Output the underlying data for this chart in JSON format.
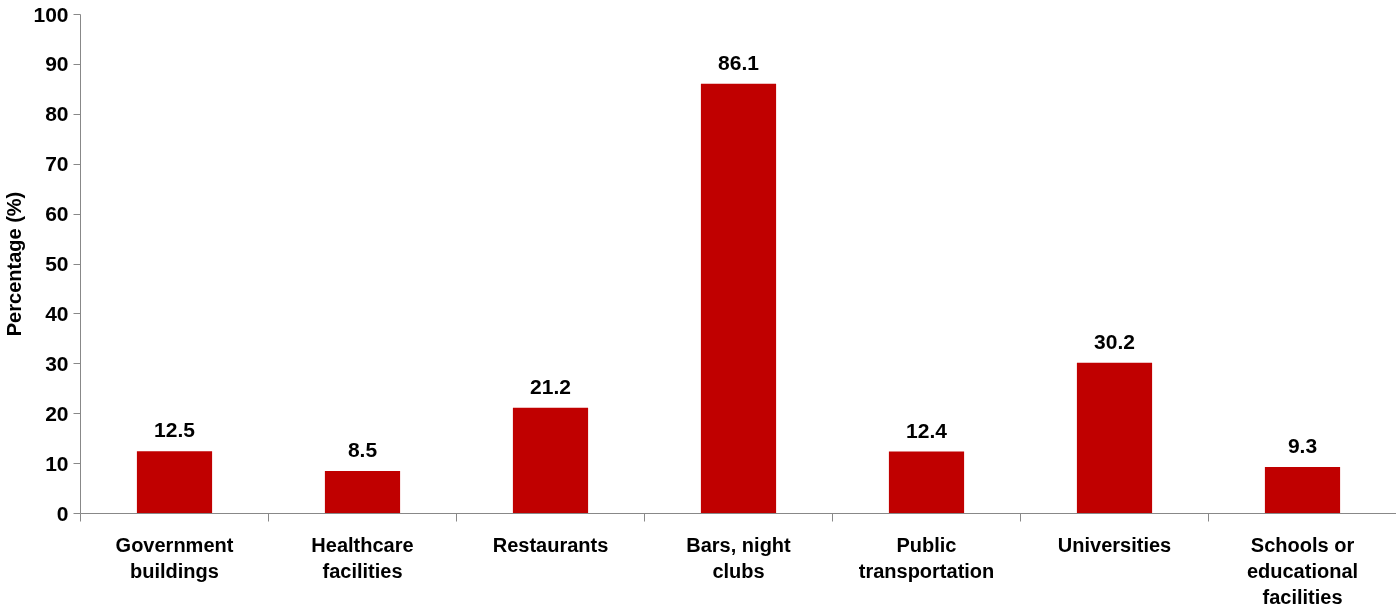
{
  "chart_data": {
    "type": "bar",
    "ylabel": "Percentage (%)",
    "categories": [
      "Government buildings",
      "Healthcare facilities",
      "Restaurants",
      "Bars, night clubs",
      "Public transportation",
      "Universities",
      "Schools or educational facilities"
    ],
    "values": [
      12.5,
      8.5,
      21.2,
      86.1,
      12.4,
      30.2,
      9.3
    ],
    "color": "#c00000",
    "ylim": [
      0,
      100
    ],
    "yticks": [
      0,
      10,
      20,
      30,
      40,
      50,
      60,
      70,
      80,
      90,
      100
    ],
    "data_labels": true,
    "grid": false
  }
}
